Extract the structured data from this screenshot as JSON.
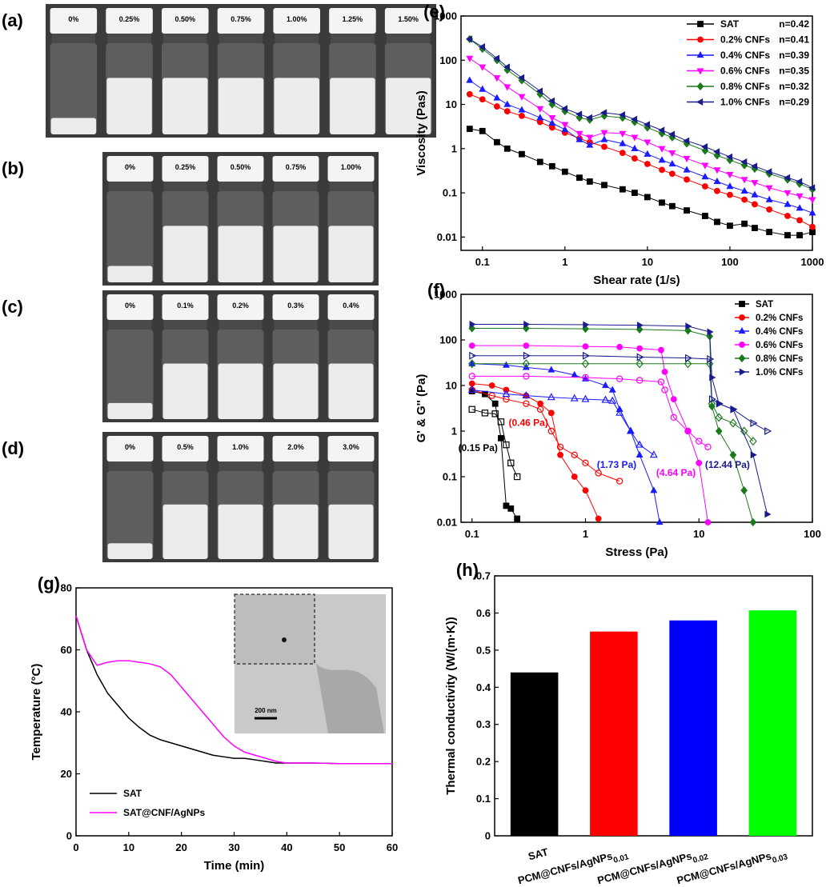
{
  "photo_panels": [
    {
      "panel_label": "(a)",
      "labels": [
        "0%",
        "0.25%",
        "0.50%",
        "0.75%",
        "1.00%",
        "1.25%",
        "1.50%"
      ]
    },
    {
      "panel_label": "(b)",
      "labels": [
        "0%",
        "0.25%",
        "0.50%",
        "0.75%",
        "1.00%"
      ]
    },
    {
      "panel_label": "(c)",
      "labels": [
        "0%",
        "0.1%",
        "0.2%",
        "0.3%",
        "0.4%"
      ]
    },
    {
      "panel_label": "(d)",
      "labels": [
        "0%",
        "0.5%",
        "1.0%",
        "2.0%",
        "3.0%"
      ]
    }
  ],
  "chart_data": [
    {
      "type": "line",
      "panel_label": "(e)",
      "xlabel": "Shear rate (1/s)",
      "ylabel": "Viscosity (Pas)",
      "xscale": "log",
      "yscale": "log",
      "xlim": [
        0.055,
        1000
      ],
      "ylim": [
        0.005,
        1000
      ],
      "xticks": [
        0.1,
        1,
        10,
        100,
        1000
      ],
      "yticks": [
        0.01,
        0.1,
        1,
        10,
        100,
        1000
      ],
      "legend": "upper right",
      "x": [
        0.07,
        0.1,
        0.15,
        0.2,
        0.3,
        0.5,
        0.7,
        1,
        1.5,
        2,
        3,
        5,
        7,
        10,
        15,
        20,
        30,
        50,
        70,
        100,
        150,
        200,
        300,
        500,
        700,
        1000
      ],
      "series": [
        {
          "name": "SAT",
          "annotation": "n=0.42",
          "color": "#000000",
          "marker": "square",
          "values": [
            2.8,
            2.5,
            1.4,
            1,
            0.75,
            0.5,
            0.4,
            0.3,
            0.22,
            0.18,
            0.15,
            0.12,
            0.1,
            0.08,
            0.06,
            0.05,
            0.04,
            0.03,
            0.022,
            0.018,
            0.02,
            0.016,
            0.013,
            0.011,
            0.011,
            0.013
          ]
        },
        {
          "name": "0.2% CNFs",
          "annotation": "n=0.41",
          "color": "#ff0000",
          "marker": "circle",
          "values": [
            17,
            13,
            9,
            7,
            5.5,
            4,
            3,
            2.3,
            1.7,
            1.4,
            1.1,
            0.8,
            0.6,
            0.45,
            0.33,
            0.27,
            0.2,
            0.14,
            0.11,
            0.09,
            0.07,
            0.055,
            0.042,
            0.03,
            0.024,
            0.017
          ]
        },
        {
          "name": "0.4% CNFs",
          "annotation": "n=0.39",
          "color": "#1a1aff",
          "marker": "triangle-up",
          "values": [
            35,
            22,
            14,
            10,
            7.5,
            5,
            3.8,
            2.7,
            1.6,
            1.2,
            1.6,
            1.3,
            1,
            0.75,
            0.55,
            0.45,
            0.33,
            0.23,
            0.18,
            0.14,
            0.11,
            0.09,
            0.07,
            0.055,
            0.045,
            0.035
          ]
        },
        {
          "name": "0.6% CNFs",
          "annotation": "n=0.35",
          "color": "#ff00ff",
          "marker": "triangle-down",
          "values": [
            110,
            70,
            40,
            25,
            15,
            8,
            5,
            3.5,
            2.2,
            1.8,
            2.3,
            2.2,
            1.8,
            1.4,
            1,
            0.8,
            0.6,
            0.42,
            0.33,
            0.26,
            0.2,
            0.17,
            0.13,
            0.1,
            0.085,
            0.07
          ]
        },
        {
          "name": "0.8% CNFs",
          "annotation": "n=0.32",
          "color": "#1b7a1b",
          "marker": "diamond",
          "values": [
            300,
            180,
            100,
            60,
            35,
            17,
            10,
            7,
            5,
            4.5,
            5.5,
            5,
            4,
            3,
            2.2,
            1.8,
            1.3,
            0.9,
            0.7,
            0.55,
            0.42,
            0.35,
            0.27,
            0.2,
            0.16,
            0.12
          ]
        },
        {
          "name": "1.0% CNFs",
          "annotation": "n=0.29",
          "color": "#1a1a8c",
          "marker": "triangle-left",
          "values": [
            300,
            200,
            110,
            70,
            40,
            20,
            12,
            8,
            6,
            5,
            6.5,
            5.8,
            4.6,
            3.5,
            2.6,
            2.1,
            1.5,
            1.1,
            0.85,
            0.65,
            0.5,
            0.4,
            0.3,
            0.22,
            0.18,
            0.13
          ]
        }
      ]
    },
    {
      "type": "line",
      "panel_label": "(f)",
      "xlabel": "Stress (Pa)",
      "ylabel": "G' & G'' (Pa)",
      "xscale": "log",
      "yscale": "log",
      "xlim": [
        0.08,
        100
      ],
      "ylim": [
        0.01,
        1000
      ],
      "xticks": [
        0.1,
        1,
        10,
        100
      ],
      "yticks": [
        0.01,
        0.1,
        1,
        10,
        100,
        1000
      ],
      "legend": "upper right",
      "series": [
        {
          "name": "SAT",
          "color": "#000000",
          "marker": "square",
          "yield_label": "(0.15 Pa)",
          "x": [
            0.1,
            0.13,
            0.16,
            0.18,
            0.2,
            0.22,
            0.25
          ],
          "values": [
            7.5,
            6.5,
            4,
            0.7,
            0.023,
            0.02,
            0.012
          ],
          "loss_values": [
            3,
            2.5,
            2.4,
            1.6,
            0.5,
            0.2,
            0.1
          ]
        },
        {
          "name": "0.2% CNFs",
          "color": "#ff0000",
          "marker": "circle",
          "yield_label": "(0.46 Pa)",
          "x": [
            0.1,
            0.15,
            0.2,
            0.3,
            0.4,
            0.5,
            0.6,
            0.8,
            1.0,
            1.3,
            2
          ],
          "values": [
            11,
            10,
            8,
            6,
            4,
            2.5,
            0.3,
            0.1,
            0.05,
            0.012,
            null
          ],
          "loss_values": [
            8,
            6,
            5,
            4,
            3,
            1,
            0.45,
            0.3,
            0.2,
            0.12,
            0.08
          ]
        },
        {
          "name": "0.4% CNFs",
          "color": "#1a1aff",
          "marker": "triangle-up",
          "yield_label": "(1.73 Pa)",
          "x": [
            0.1,
            0.2,
            0.3,
            0.5,
            0.8,
            1,
            1.5,
            1.73,
            2,
            2.5,
            3,
            4,
            4.5
          ],
          "values": [
            30,
            28,
            25,
            22,
            17,
            14,
            10,
            8,
            3,
            1,
            0.3,
            0.05,
            0.01
          ],
          "loss_values": [
            8,
            6.5,
            6,
            5.5,
            5.2,
            5,
            4.8,
            4.6,
            2.5,
            1,
            0.5,
            0.3,
            null
          ]
        },
        {
          "name": "0.6% CNFs",
          "color": "#ff00ff",
          "marker": "circle",
          "yield_label": "(4.64 Pa)",
          "x": [
            0.1,
            0.3,
            1,
            2,
            3,
            4.64,
            5,
            6,
            8,
            10,
            12
          ],
          "values": [
            75,
            75,
            72,
            70,
            65,
            60,
            20,
            5,
            1,
            0.2,
            0.01
          ],
          "loss_values": [
            16,
            16,
            15,
            14,
            13,
            12,
            8,
            2,
            1,
            0.6,
            0.45
          ]
        },
        {
          "name": "0.8% CNFs",
          "color": "#1b7a1b",
          "marker": "diamond",
          "x": [
            0.1,
            0.3,
            1,
            3,
            8,
            12.44,
            13,
            15,
            20,
            25,
            30
          ],
          "values": [
            180,
            180,
            175,
            170,
            160,
            120,
            3.5,
            1,
            0.3,
            0.05,
            0.01
          ],
          "loss_values": [
            30,
            30,
            30,
            30,
            30,
            30,
            4,
            2,
            1.5,
            1,
            0.6
          ]
        },
        {
          "name": "1.0% CNFs",
          "color": "#1a1a8c",
          "marker": "triangle-right",
          "yield_label": "(12.44 Pa)",
          "x": [
            0.1,
            0.3,
            1,
            3,
            8,
            12.44,
            13,
            15,
            20,
            30,
            40
          ],
          "values": [
            220,
            220,
            215,
            210,
            200,
            150,
            15,
            4,
            3,
            0.3,
            0.015
          ],
          "loss_values": [
            45,
            45,
            45,
            42,
            40,
            38,
            5,
            4,
            3,
            1.5,
            1
          ]
        }
      ]
    },
    {
      "type": "line",
      "panel_label": "(g)",
      "xlabel": "Time (min)",
      "ylabel": "Temperature (°C)",
      "xlim": [
        0,
        60
      ],
      "ylim": [
        0,
        80
      ],
      "xticks": [
        0,
        10,
        20,
        30,
        40,
        50,
        60
      ],
      "yticks": [
        0,
        20,
        40,
        60,
        80
      ],
      "legend": "lower left",
      "inset_scale": "200 nm",
      "x": [
        0,
        2,
        4,
        6,
        8,
        10,
        12,
        14,
        16,
        18,
        20,
        22,
        24,
        26,
        28,
        30,
        32,
        34,
        36,
        38,
        40,
        45,
        50,
        55,
        60
      ],
      "series": [
        {
          "name": "SAT",
          "color": "#000000",
          "values": [
            71,
            60,
            52,
            46,
            42,
            38,
            35,
            32.5,
            31,
            30,
            29,
            28,
            27,
            26,
            25.5,
            25,
            25,
            24.5,
            24,
            23.5,
            23.5,
            23.5,
            23.3,
            23.3,
            23.3
          ]
        },
        {
          "name": "SAT@CNF/AgNPs",
          "color": "#ff00ff",
          "values": [
            71,
            60,
            55,
            56,
            56.5,
            56.5,
            56,
            55.5,
            54.5,
            52,
            48,
            44,
            40,
            36,
            32,
            29,
            27,
            26,
            25,
            24,
            23.5,
            23.5,
            23.3,
            23.3,
            23.3
          ]
        }
      ]
    },
    {
      "type": "bar",
      "panel_label": "(h)",
      "ylabel": "Thermal conductivity (W/(m·K))",
      "ylim": [
        0,
        0.7
      ],
      "yticks": [
        0,
        0.1,
        0.2,
        0.3,
        0.4,
        0.5,
        0.6,
        0.7
      ],
      "categories": [
        "SAT",
        "PCM@CNFs/AgNPs",
        "PCM@CNFs/AgNPs",
        "PCM@CNFs/AgNPs"
      ],
      "category_subscripts": [
        null,
        "0.01",
        "0.02",
        "0.03"
      ],
      "values": [
        0.44,
        0.55,
        0.58,
        0.607
      ],
      "colors": [
        "#000000",
        "#ff0000",
        "#0000ff",
        "#00ff00"
      ]
    }
  ]
}
